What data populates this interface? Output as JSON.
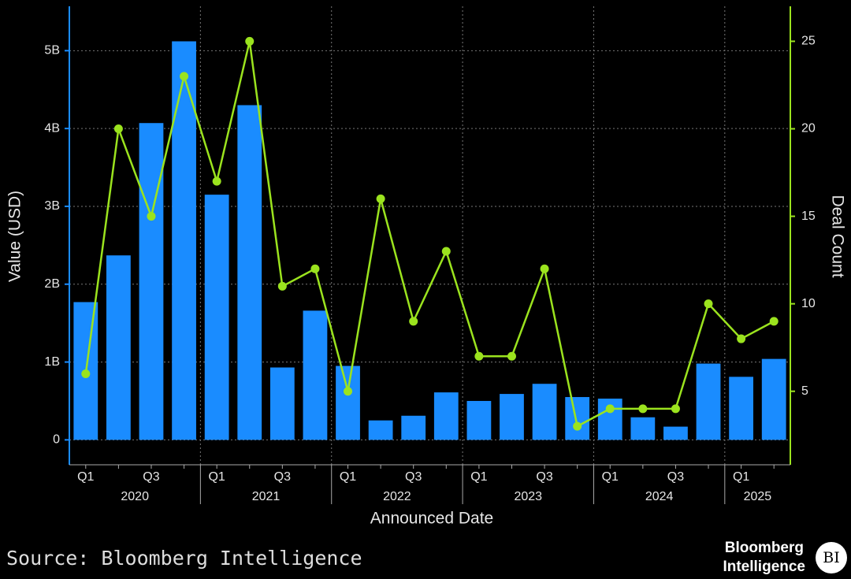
{
  "chart_data": {
    "type": "bar",
    "x_label": "Announced Date",
    "y_label": "Value (USD)",
    "y2_label": "Deal Count",
    "categories": [
      "Q1",
      null,
      "Q3",
      null,
      "Q1",
      null,
      "Q3",
      null,
      "Q1",
      null,
      "Q3",
      null,
      "Q1",
      null,
      "Q3",
      null,
      "Q1",
      null,
      "Q3",
      null,
      "Q1",
      null
    ],
    "groups": [
      "2020",
      "2021",
      "2022",
      "2023",
      "2024",
      "2025"
    ],
    "series": [
      {
        "name": "Value",
        "type": "bar",
        "color": "#1a8cff",
        "values": [
          1.77,
          2.37,
          4.07,
          5.12,
          3.15,
          4.3,
          0.93,
          1.66,
          0.95,
          0.25,
          0.31,
          0.61,
          0.5,
          0.59,
          0.72,
          0.55,
          0.53,
          0.29,
          0.17,
          0.98,
          0.81,
          1.04
        ]
      },
      {
        "name": "Deal Count",
        "type": "line",
        "axis": "y2",
        "color": "#9be31e",
        "values": [
          6,
          20,
          15,
          23,
          17,
          25,
          11,
          12,
          5,
          16,
          9,
          13,
          7,
          7,
          12,
          3,
          4,
          4,
          4,
          10,
          8,
          9
        ]
      }
    ],
    "ylim": [
      -0.32,
      5.57
    ],
    "yticks": [
      0,
      {
        "value": 1,
        "label": "1B"
      },
      {
        "value": 2,
        "label": "2B"
      },
      {
        "value": 3,
        "label": "3B"
      },
      {
        "value": 4,
        "label": "4B"
      },
      {
        "value": 5,
        "label": "5B"
      }
    ],
    "y2lim": [
      0.8,
      27
    ],
    "y2ticks": [
      5,
      10,
      15,
      20,
      25
    ],
    "grid": true
  },
  "source": "Source: Bloomberg Intelligence",
  "logo": [
    "Bloomberg",
    "Intelligence"
  ],
  "badge": "BI"
}
